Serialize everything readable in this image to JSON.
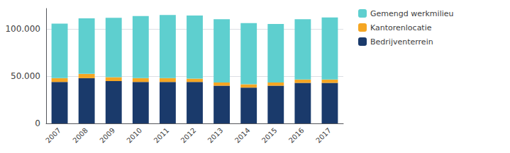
{
  "chart_data": {
    "type": "bar",
    "stacked": true,
    "categories": [
      "2007",
      "2008",
      "2009",
      "2010",
      "2011",
      "2012",
      "2013",
      "2014",
      "2015",
      "2016",
      "2017"
    ],
    "series": [
      {
        "name": "Bedrijventerrein",
        "color": "#1a3a6b",
        "values": [
          44000,
          48000,
          45000,
          44000,
          44000,
          44000,
          40000,
          38000,
          40000,
          43000,
          43000
        ]
      },
      {
        "name": "Kantorenlocatie",
        "color": "#f5a623",
        "values": [
          4000,
          4500,
          4000,
          4000,
          4000,
          3500,
          3500,
          3500,
          3500,
          3500,
          3500
        ]
      },
      {
        "name": "Gemengd werkmilieu",
        "color": "#5ecfcf",
        "values": [
          58000,
          59000,
          63000,
          66000,
          67000,
          67000,
          67000,
          65000,
          62000,
          64000,
          66000
        ]
      }
    ],
    "ylim": [
      0,
      122000
    ],
    "yticks": [
      0,
      {
        "value": 50000,
        "label": "50.000"
      },
      {
        "value": 100000,
        "label": "100.000"
      }
    ],
    "grid": true,
    "legend": "upper right"
  }
}
